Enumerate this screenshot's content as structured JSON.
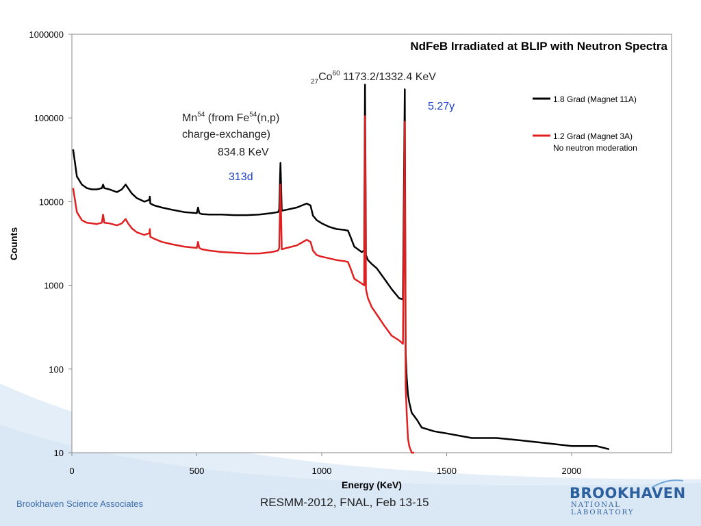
{
  "chart_data": {
    "type": "line",
    "title": "NdFeB Irradiated at BLIP with Neutron Spectra",
    "xlabel": "Energy (KeV)",
    "ylabel": "Counts",
    "xlim": [
      0,
      2400
    ],
    "ylim": [
      10,
      1000000
    ],
    "yscale": "log",
    "xticks": [
      "0",
      "500",
      "1000",
      "1500",
      "2000"
    ],
    "yticks": [
      "10",
      "100",
      "1000",
      "10000",
      "100000",
      "1000000"
    ],
    "legend_placement": "right",
    "series": [
      {
        "name": "1.8 Grad (Magnet 11A)",
        "color": "#000000",
        "x": [
          5,
          20,
          40,
          60,
          80,
          100,
          120,
          125,
          130,
          150,
          180,
          200,
          215,
          225,
          240,
          260,
          290,
          310,
          312,
          314,
          330,
          360,
          400,
          450,
          500,
          505,
          510,
          520,
          550,
          600,
          650,
          700,
          750,
          800,
          825,
          830,
          834.8,
          840,
          860,
          900,
          940,
          955,
          965,
          980,
          1000,
          1030,
          1060,
          1090,
          1105,
          1115,
          1130,
          1160,
          1170,
          1173.2,
          1177,
          1185,
          1200,
          1220,
          1250,
          1280,
          1310,
          1325,
          1332.4,
          1336,
          1340,
          1345,
          1350,
          1360,
          1380,
          1400,
          1450,
          1500,
          1600,
          1700,
          1800,
          1900,
          2000,
          2100,
          2150
        ],
        "values": [
          42000,
          20000,
          16000,
          14500,
          14000,
          14000,
          14500,
          16000,
          14500,
          14000,
          13000,
          14000,
          16000,
          14500,
          12500,
          11000,
          10000,
          10500,
          11500,
          9500,
          9000,
          8500,
          8000,
          7500,
          7300,
          8500,
          7300,
          7100,
          7000,
          7000,
          6900,
          6900,
          7000,
          7300,
          7500,
          8000,
          29000,
          7800,
          8000,
          8500,
          9500,
          9000,
          6800,
          6000,
          5500,
          5000,
          4700,
          4600,
          4500,
          3800,
          2900,
          2500,
          2600,
          250000,
          2300,
          2000,
          1800,
          1600,
          1200,
          900,
          700,
          680,
          220000,
          150,
          80,
          50,
          40,
          30,
          25,
          20,
          18,
          17,
          15,
          15,
          14,
          13,
          12,
          12,
          11
        ]
      },
      {
        "name": "1.2 Grad (Magnet 3A)",
        "name_line2": "No neutron moderation",
        "color": "#e02020",
        "x": [
          5,
          20,
          40,
          60,
          80,
          100,
          120,
          125,
          130,
          150,
          180,
          200,
          215,
          225,
          240,
          260,
          290,
          310,
          312,
          314,
          330,
          360,
          400,
          450,
          500,
          505,
          510,
          520,
          550,
          600,
          650,
          700,
          750,
          800,
          825,
          830,
          834.8,
          840,
          860,
          900,
          940,
          955,
          965,
          980,
          1000,
          1030,
          1060,
          1090,
          1105,
          1115,
          1130,
          1160,
          1170,
          1173.2,
          1177,
          1185,
          1200,
          1220,
          1250,
          1280,
          1310,
          1325,
          1332.4,
          1336,
          1340,
          1345,
          1350,
          1360,
          1370
        ],
        "values": [
          14500,
          7500,
          6000,
          5600,
          5500,
          5400,
          5600,
          7000,
          5600,
          5500,
          5200,
          5500,
          6200,
          5500,
          4800,
          4300,
          4000,
          4200,
          4700,
          3800,
          3600,
          3300,
          3100,
          2900,
          2800,
          3300,
          2800,
          2700,
          2600,
          2500,
          2450,
          2400,
          2400,
          2500,
          2600,
          2800,
          16000,
          2700,
          2800,
          3000,
          3500,
          3300,
          2600,
          2300,
          2200,
          2100,
          2000,
          1950,
          1900,
          1600,
          1200,
          1050,
          1000,
          105000,
          900,
          700,
          550,
          450,
          330,
          250,
          220,
          200,
          90000,
          60,
          30,
          15,
          12,
          10,
          10
        ]
      }
    ],
    "annotations": [
      {
        "base": "27",
        "main": "Co",
        "sup": "60",
        "text": " 1173.2/1332.4 KeV",
        "color": "#222222"
      },
      {
        "text": "5.27y",
        "color": "#1a3ccc"
      },
      {
        "main": "Mn",
        "sup": "54",
        "text": " (from Fe",
        "sup2": "54",
        "text2": "(n,p)",
        "line2": "charge-exchange)",
        "color": "#222222"
      },
      {
        "text": "834.8 KeV",
        "color": "#222222"
      },
      {
        "text": "313d",
        "color": "#1a3ccc"
      }
    ]
  },
  "footer": {
    "left": "Brookhaven Science Associates",
    "center": "RESMM-2012, FNAL, Feb 13-15",
    "logo_word": "BROOKHAVEN",
    "logo_sub": "NATIONAL LABORATORY"
  },
  "colors": {
    "accent_blue": "#2b5f9e",
    "swoosh": "#dce9f5"
  }
}
